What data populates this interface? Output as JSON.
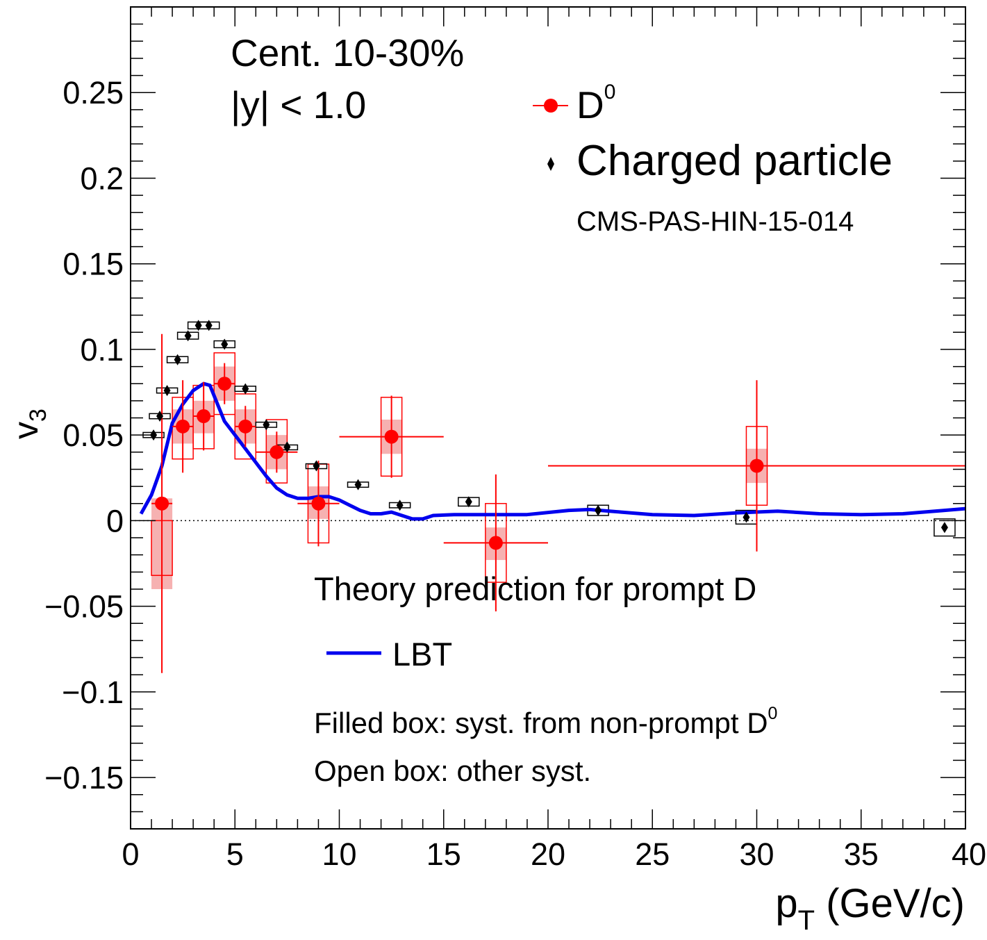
{
  "colors": {
    "d0": "#ff0000",
    "d0_fill_box": "#f4a3a3",
    "charged": "#000000",
    "lbt": "#0000ee",
    "frame": "#000000"
  },
  "texts": {
    "centrality": "Cent. 10-30%",
    "rapidity": "|y| < 1.0",
    "legend_d0": "D",
    "legend_d0_sup": "0",
    "legend_charged": "Charged particle",
    "cms_ref": "CMS-PAS-HIN-15-014",
    "theory_title": "Theory prediction for prompt D",
    "legend_lbt": "LBT",
    "filled_box_note": "Filled box: syst. from non-prompt D",
    "filled_box_note_sup": "0",
    "open_box_note": "Open box: other syst."
  },
  "axes": {
    "y_main": "v",
    "y_sub": "3",
    "x_main": "p",
    "x_sub": "T",
    "x_unit": " (GeV/c)"
  },
  "chart_data": {
    "type": "scatter",
    "xlim": [
      0,
      40
    ],
    "ylim": [
      -0.18,
      0.3
    ],
    "x_ticks": [
      "0",
      "5",
      "10",
      "15",
      "20",
      "25",
      "30",
      "35",
      "40"
    ],
    "y_ticks": [
      "−0.15",
      "−0.1",
      "−0.05",
      "0",
      "0.05",
      "0.1",
      "0.15",
      "0.2",
      "0.25"
    ],
    "reference_line": 0,
    "series": [
      {
        "name": "D0",
        "marker": "circle",
        "points": [
          {
            "x": 1.5,
            "y": 0.01,
            "xlo": 1.0,
            "xhi": 2.0,
            "stat": 0.099,
            "sys_nonprompt": [
              -0.04,
              0.013
            ],
            "sys_other": [
              -0.032,
              0.0
            ]
          },
          {
            "x": 2.5,
            "y": 0.055,
            "xlo": 2.0,
            "xhi": 3.0,
            "stat": 0.027,
            "sys_nonprompt": [
              0.045,
              0.065
            ],
            "sys_other": [
              0.036,
              0.072
            ]
          },
          {
            "x": 3.5,
            "y": 0.061,
            "xlo": 3.0,
            "xhi": 4.0,
            "stat": 0.02,
            "sys_nonprompt": [
              0.051,
              0.07
            ],
            "sys_other": [
              0.042,
              0.079
            ]
          },
          {
            "x": 4.5,
            "y": 0.08,
            "xlo": 4.0,
            "xhi": 5.0,
            "stat": 0.012,
            "sys_nonprompt": [
              0.07,
              0.09
            ],
            "sys_other": [
              0.062,
              0.098
            ]
          },
          {
            "x": 5.5,
            "y": 0.055,
            "xlo": 5.0,
            "xhi": 6.0,
            "stat": 0.012,
            "sys_nonprompt": [
              0.045,
              0.065
            ],
            "sys_other": [
              0.036,
              0.074
            ]
          },
          {
            "x": 7.0,
            "y": 0.04,
            "xlo": 6.0,
            "xhi": 8.0,
            "stat": 0.012,
            "sys_nonprompt": [
              0.03,
              0.05
            ],
            "sys_other": [
              0.022,
              0.059
            ]
          },
          {
            "x": 9.0,
            "y": 0.01,
            "xlo": 8.0,
            "xhi": 10.0,
            "stat": 0.025,
            "sys_nonprompt": [
              0.001,
              0.02
            ],
            "sys_other": [
              -0.013,
              0.033
            ]
          },
          {
            "x": 12.5,
            "y": 0.049,
            "xlo": 10.0,
            "xhi": 15.0,
            "stat": 0.024,
            "sys_nonprompt": [
              0.039,
              0.059
            ],
            "sys_other": [
              0.026,
              0.072
            ]
          },
          {
            "x": 17.5,
            "y": -0.013,
            "xlo": 15.0,
            "xhi": 20.0,
            "stat": 0.04,
            "sys_nonprompt": [
              -0.023,
              -0.004
            ],
            "sys_other": [
              -0.036,
              0.01
            ]
          },
          {
            "x": 30.0,
            "y": 0.032,
            "xlo": 20.0,
            "xhi": 40.0,
            "stat": 0.05,
            "sys_nonprompt": [
              0.022,
              0.042
            ],
            "sys_other": [
              0.009,
              0.055
            ]
          }
        ]
      },
      {
        "name": "Charged particle",
        "marker": "diamond",
        "points": [
          {
            "x": 1.1,
            "y": 0.05,
            "sys": 0.0015
          },
          {
            "x": 1.4,
            "y": 0.061,
            "sys": 0.0015
          },
          {
            "x": 1.75,
            "y": 0.076,
            "sys": 0.0015
          },
          {
            "x": 2.25,
            "y": 0.094,
            "sys": 0.0018
          },
          {
            "x": 2.75,
            "y": 0.108,
            "sys": 0.002
          },
          {
            "x": 3.25,
            "y": 0.114,
            "sys": 0.002
          },
          {
            "x": 3.75,
            "y": 0.114,
            "sys": 0.002
          },
          {
            "x": 4.5,
            "y": 0.103,
            "sys": 0.002
          },
          {
            "x": 5.5,
            "y": 0.077,
            "sys": 0.0015
          },
          {
            "x": 6.5,
            "y": 0.056,
            "sys": 0.0015
          },
          {
            "x": 7.5,
            "y": 0.043,
            "sys": 0.0012
          },
          {
            "x": 8.9,
            "y": 0.032,
            "sys": 0.0012
          },
          {
            "x": 10.9,
            "y": 0.021,
            "sys": 0.0015
          },
          {
            "x": 12.9,
            "y": 0.009,
            "sys": 0.0015
          },
          {
            "x": 16.2,
            "y": 0.011,
            "sys": 0.0025
          },
          {
            "x": 22.4,
            "y": 0.006,
            "sys": 0.003
          },
          {
            "x": 29.5,
            "y": 0.002,
            "sys": 0.004
          },
          {
            "x": 39.0,
            "y": -0.004,
            "sys": 0.005
          }
        ]
      },
      {
        "name": "LBT",
        "type": "line",
        "points": [
          [
            0.5,
            0.004
          ],
          [
            1.0,
            0.015
          ],
          [
            1.5,
            0.032
          ],
          [
            2.0,
            0.057
          ],
          [
            2.5,
            0.068
          ],
          [
            3.0,
            0.076
          ],
          [
            3.5,
            0.08
          ],
          [
            3.8,
            0.079
          ],
          [
            4.1,
            0.07
          ],
          [
            4.5,
            0.058
          ],
          [
            5.0,
            0.05
          ],
          [
            5.5,
            0.042
          ],
          [
            6.0,
            0.034
          ],
          [
            6.5,
            0.026
          ],
          [
            7.0,
            0.019
          ],
          [
            7.5,
            0.015
          ],
          [
            8.0,
            0.013
          ],
          [
            8.5,
            0.013
          ],
          [
            9.0,
            0.014
          ],
          [
            9.5,
            0.014
          ],
          [
            10.0,
            0.012
          ],
          [
            10.5,
            0.009
          ],
          [
            11.0,
            0.006
          ],
          [
            11.5,
            0.004
          ],
          [
            12.0,
            0.004
          ],
          [
            12.5,
            0.005
          ],
          [
            13.0,
            0.003
          ],
          [
            13.5,
            0.001
          ],
          [
            14.0,
            0.001
          ],
          [
            14.5,
            0.003
          ],
          [
            15.5,
            0.0035
          ],
          [
            17.0,
            0.0035
          ],
          [
            19.0,
            0.0035
          ],
          [
            21.0,
            0.006
          ],
          [
            22.0,
            0.0065
          ],
          [
            23.5,
            0.005
          ],
          [
            25.0,
            0.0035
          ],
          [
            27.0,
            0.003
          ],
          [
            29.0,
            0.0045
          ],
          [
            31.0,
            0.0055
          ],
          [
            33.0,
            0.004
          ],
          [
            35.0,
            0.0035
          ],
          [
            37.0,
            0.004
          ],
          [
            39.0,
            0.006
          ],
          [
            40.0,
            0.007
          ]
        ]
      }
    ]
  }
}
